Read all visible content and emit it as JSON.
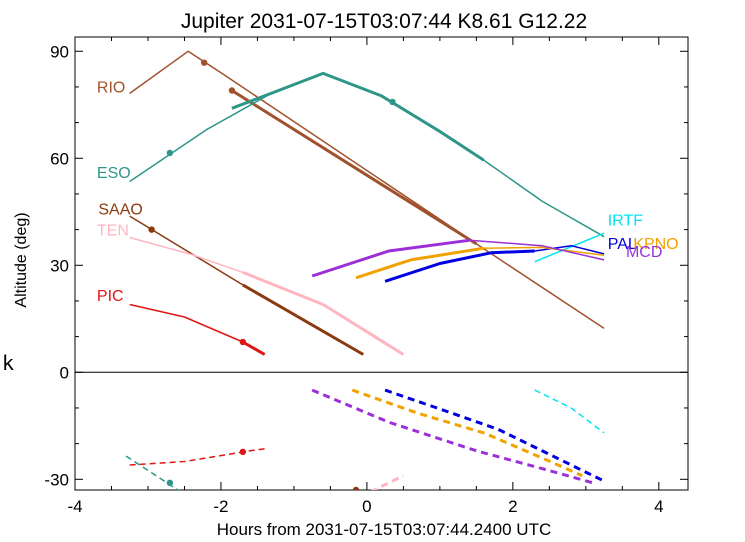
{
  "chart_data": {
    "type": "line",
    "title": "Jupiter 2031-07-15T03:07:44  K8.61  G12.22",
    "xlabel": "Hours from 2031-07-15T03:07:44.2400 UTC",
    "ylabel": "Altitude (deg)",
    "side_label": "k",
    "xlim": [
      -4.0,
      4.4
    ],
    "ylim": [
      -33,
      94
    ],
    "xticks": [
      -4,
      -2,
      0,
      2,
      4
    ],
    "yticks": [
      -30,
      0,
      30,
      60,
      90
    ],
    "grid": false,
    "legend": "inline labels",
    "series": [
      {
        "name": "RIO",
        "color": "#a0522d",
        "label_at": [
          -3.7,
          78.5
        ],
        "segments": [
          {
            "points": [
              [
                -3.25,
                78.2
              ],
              [
                -2.45,
                90.0
              ],
              [
                -2.0,
                84.0
              ],
              [
                1.5,
                36.0
              ],
              [
                3.25,
                12.3
              ]
            ],
            "width": 1.5
          },
          {
            "points": [
              [
                -1.85,
                79.0
              ],
              [
                1.5,
                36.0
              ]
            ],
            "width": 3
          }
        ],
        "markers": [
          [
            -2.23,
            86.8
          ],
          [
            -1.85,
            79.0
          ]
        ]
      },
      {
        "name": "ESO",
        "color": "#2e9688",
        "label_at": [
          -3.7,
          54.5
        ],
        "segments": [
          {
            "points": [
              [
                -3.25,
                53.5
              ],
              [
                -2.2,
                68.0
              ],
              [
                -1.3,
                78.3
              ],
              [
                -0.6,
                83.8
              ],
              [
                0.2,
                77.5
              ],
              [
                1.0,
                67.5
              ],
              [
                1.6,
                59.5
              ],
              [
                2.4,
                48.0
              ],
              [
                3.25,
                38.0
              ]
            ],
            "width": 1.5
          },
          {
            "points": [
              [
                -1.85,
                74.0
              ],
              [
                -1.3,
                78.3
              ],
              [
                -0.6,
                83.8
              ],
              [
                0.2,
                77.5
              ],
              [
                1.0,
                67.5
              ],
              [
                1.6,
                59.5
              ]
            ],
            "width": 3
          }
        ],
        "markers": [
          [
            -2.7,
            61.5
          ],
          [
            0.35,
            75.8
          ]
        ]
      },
      {
        "name": "SAAO",
        "color": "#8b3a0f",
        "label_at": [
          -3.68,
          44.2
        ],
        "segments": [
          {
            "points": [
              [
                -3.25,
                43.8
              ],
              [
                -1.7,
                24.5
              ]
            ],
            "width": 1.5
          },
          {
            "points": [
              [
                -1.7,
                24.5
              ],
              [
                -0.05,
                5.0
              ]
            ],
            "width": 3
          }
        ],
        "markers": [
          [
            -2.95,
            40.0
          ]
        ]
      },
      {
        "name": "TEN",
        "color": "#ffb6c1",
        "label_at": [
          -3.7,
          38.3
        ],
        "segments": [
          {
            "points": [
              [
                -3.25,
                37.8
              ],
              [
                -2.4,
                33.0
              ],
              [
                -1.7,
                28.0
              ]
            ],
            "width": 1.5
          },
          {
            "points": [
              [
                -1.7,
                28.0
              ],
              [
                -0.6,
                19.0
              ],
              [
                0.5,
                5.0
              ]
            ],
            "width": 3
          }
        ],
        "markers": []
      },
      {
        "name": "PIC",
        "color": "#e01515",
        "label_at": [
          -3.7,
          20.0
        ],
        "segments": [
          {
            "points": [
              [
                -3.25,
                19.0
              ],
              [
                -2.5,
                15.5
              ],
              [
                -1.7,
                8.5
              ]
            ],
            "width": 1.5
          },
          {
            "points": [
              [
                -1.7,
                8.5
              ],
              [
                -1.4,
                5.0
              ]
            ],
            "width": 3
          }
        ],
        "markers": [
          [
            -1.7,
            8.5
          ]
        ]
      },
      {
        "name": "IRTF",
        "color": "#00e5ee",
        "label_at": [
          3.3,
          41.2
        ],
        "segments": [
          {
            "points": [
              [
                2.3,
                31.0
              ],
              [
                3.25,
                39.0
              ]
            ],
            "width": 1.5
          }
        ],
        "markers": []
      },
      {
        "name": "PAL",
        "color": "#0000e0",
        "label_at": [
          3.3,
          34.5
        ],
        "segments": [
          {
            "points": [
              [
                2.3,
                34.0
              ],
              [
                2.8,
                35.5
              ],
              [
                3.25,
                33.2
              ]
            ],
            "width": 1.5
          },
          {
            "points": [
              [
                0.25,
                25.5
              ],
              [
                1.0,
                30.5
              ],
              [
                1.7,
                33.5
              ],
              [
                2.3,
                34.0
              ]
            ],
            "width": 3
          }
        ],
        "markers": []
      },
      {
        "name": "KPNO",
        "color": "#f2a200",
        "label_at": [
          3.65,
          34.5
        ],
        "segments": [
          {
            "points": [
              [
                1.6,
                34.8
              ],
              [
                2.4,
                35.0
              ],
              [
                3.25,
                32.8
              ]
            ],
            "width": 1.5
          },
          {
            "points": [
              [
                -0.15,
                26.5
              ],
              [
                0.6,
                31.5
              ],
              [
                1.6,
                34.8
              ]
            ],
            "width": 3
          }
        ],
        "markers": []
      },
      {
        "name": "MCD",
        "color": "#9b30d9",
        "label_at": [
          3.55,
          32.3
        ],
        "segments": [
          {
            "points": [
              [
                1.4,
                37.0
              ],
              [
                2.4,
                35.5
              ],
              [
                3.25,
                31.5
              ]
            ],
            "width": 1.5
          },
          {
            "points": [
              [
                -0.75,
                27.0
              ],
              [
                0.3,
                34.0
              ],
              [
                1.4,
                37.0
              ]
            ],
            "width": 3
          }
        ],
        "markers": []
      }
    ],
    "below_horizon": [
      {
        "name": "ESO",
        "color": "#2e9688",
        "dash": true,
        "points": [
          [
            -3.3,
            -23.5
          ],
          [
            -2.55,
            -33.5
          ]
        ],
        "width": 1.5,
        "markers": [
          [
            -2.7,
            -31.0
          ]
        ]
      },
      {
        "name": "PIC",
        "color": "#e01515",
        "dash": true,
        "points": [
          [
            -3.25,
            -26.0
          ],
          [
            -2.5,
            -25.0
          ],
          [
            -1.6,
            -22.0
          ],
          [
            -1.35,
            -21.3
          ]
        ],
        "width": 1.5,
        "markers": [
          [
            -1.7,
            -22.3
          ]
        ]
      },
      {
        "name": "SAAO",
        "color": "#8b3a0f",
        "dash": false,
        "points": [],
        "width": 1.5,
        "markers": [
          [
            -0.15,
            -33.0
          ]
        ]
      },
      {
        "name": "TEN",
        "color": "#ffb6c1",
        "dash": true,
        "points": [
          [
            0.05,
            -33.5
          ],
          [
            0.5,
            -29.0
          ]
        ],
        "width": 3,
        "markers": []
      },
      {
        "name": "MCD",
        "color": "#9b30d9",
        "dash": true,
        "points": [
          [
            -0.75,
            -5.0
          ],
          [
            0.3,
            -14.0
          ],
          [
            1.5,
            -22.0
          ],
          [
            2.4,
            -27.0
          ],
          [
            3.1,
            -31.0
          ]
        ],
        "width": 3,
        "markers": []
      },
      {
        "name": "KPNO",
        "color": "#f2a200",
        "dash": true,
        "points": [
          [
            -0.2,
            -5.0
          ],
          [
            0.7,
            -11.5
          ],
          [
            1.6,
            -17.0
          ],
          [
            2.4,
            -24.0
          ],
          [
            2.95,
            -29.0
          ]
        ],
        "width": 3,
        "markers": []
      },
      {
        "name": "PAL",
        "color": "#0000e0",
        "dash": true,
        "points": [
          [
            0.25,
            -5.0
          ],
          [
            1.1,
            -11.0
          ],
          [
            1.8,
            -16.0
          ],
          [
            2.5,
            -23.0
          ],
          [
            3.25,
            -30.5
          ]
        ],
        "width": 3,
        "markers": []
      },
      {
        "name": "IRTF",
        "color": "#00e5ee",
        "dash": true,
        "points": [
          [
            2.3,
            -5.0
          ],
          [
            2.8,
            -10.0
          ],
          [
            3.25,
            -17.0
          ]
        ],
        "width": 1.5,
        "markers": []
      }
    ]
  }
}
